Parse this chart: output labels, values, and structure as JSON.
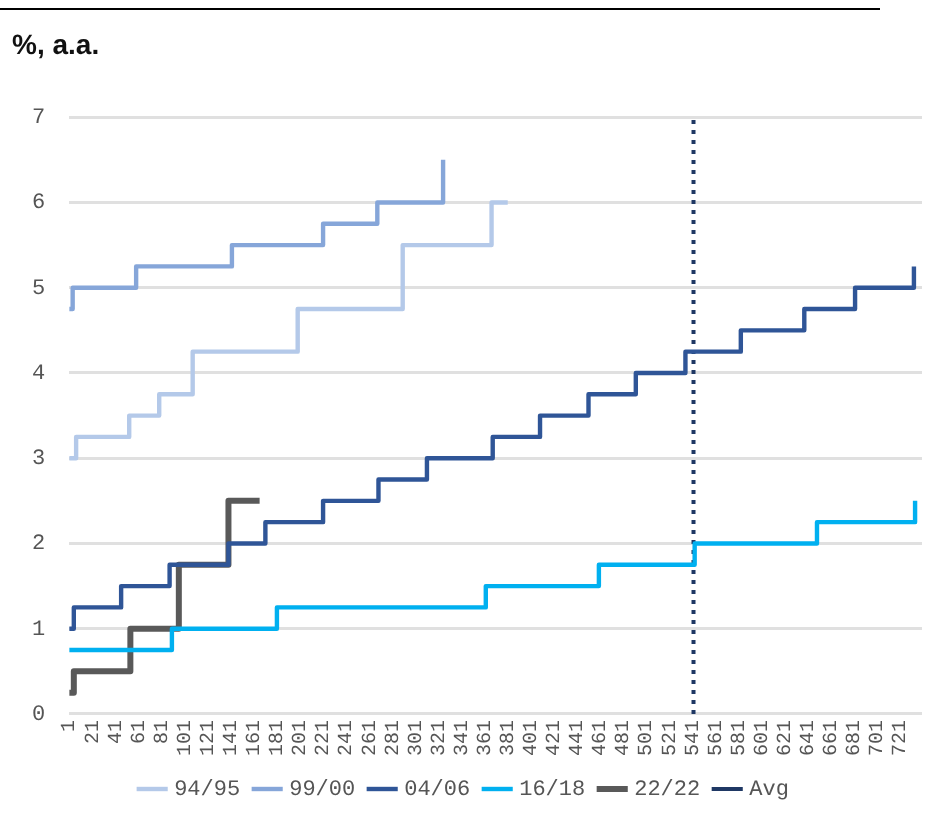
{
  "chart_data": {
    "type": "step",
    "title": "%, a.a.",
    "xlim": [
      1,
      740
    ],
    "xticks": [
      1,
      21,
      41,
      61,
      81,
      101,
      121,
      141,
      161,
      181,
      201,
      221,
      241,
      261,
      281,
      301,
      321,
      341,
      361,
      381,
      401,
      421,
      441,
      461,
      481,
      501,
      521,
      541,
      561,
      581,
      601,
      621,
      641,
      661,
      681,
      701,
      721
    ],
    "ylim": [
      0,
      7
    ],
    "yticks": [
      0,
      1,
      2,
      3,
      4,
      5,
      6,
      7
    ],
    "grid": "y",
    "legend": "bottom",
    "series": [
      {
        "name": "94/95",
        "color": "#b4c9e9",
        "x": [
          1,
          7,
          53,
          79,
          108,
          199,
          290,
          367,
          381
        ],
        "values": [
          3,
          3.25,
          3.5,
          3.75,
          4.25,
          4.75,
          5.5,
          6,
          6
        ]
      },
      {
        "name": "99/00",
        "color": "#86a6d9",
        "x": [
          1,
          4,
          59,
          142,
          221,
          268,
          325
        ],
        "values": [
          4.75,
          5,
          5.25,
          5.5,
          5.75,
          6,
          6.5
        ]
      },
      {
        "name": "04/06",
        "color": "#2f5597",
        "x": [
          1,
          5,
          46,
          88,
          139,
          171,
          221,
          269,
          311,
          368,
          409,
          451,
          492,
          535,
          583,
          638,
          682,
          733
        ],
        "values": [
          1,
          1.25,
          1.5,
          1.75,
          2,
          2.25,
          2.5,
          2.75,
          3,
          3.25,
          3.5,
          3.75,
          4,
          4.25,
          4.5,
          4.75,
          5,
          5.25
        ]
      },
      {
        "name": "16/18",
        "color": "#00b0f0",
        "x": [
          1,
          90,
          181,
          362,
          460,
          543,
          649,
          734
        ],
        "values": [
          0.75,
          1,
          1.25,
          1.5,
          1.75,
          2,
          2.25,
          2.5
        ]
      },
      {
        "name": "22/22",
        "color": "#595959",
        "x": [
          1,
          5,
          54,
          96,
          139,
          166
        ],
        "values": [
          0.25,
          0.5,
          1,
          1.75,
          2.5,
          2.5
        ]
      }
    ],
    "ref_lines": [
      {
        "axis": "x",
        "value": 542,
        "label": "Avg",
        "color": "#1f3864",
        "line_style": "dotted"
      }
    ]
  }
}
